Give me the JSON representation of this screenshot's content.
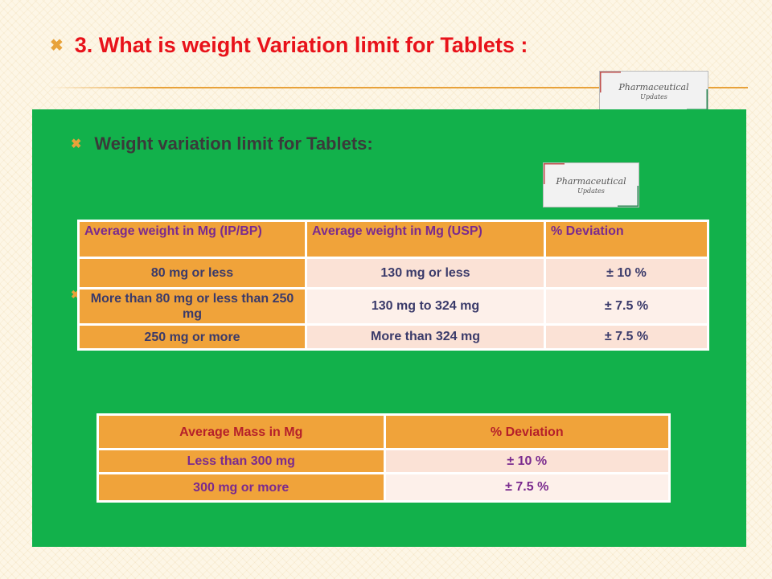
{
  "slide": {
    "title": "3. What is weight Variation limit for Tablets  :"
  },
  "logo": {
    "line1": "Pharmaceutical",
    "line2": "Updates"
  },
  "panel": {
    "heading": "Weight variation limit for Tablets:",
    "table1": {
      "headers": [
        "Average weight in Mg (IP/BP)",
        "Average weight in Mg (USP)",
        "% Deviation"
      ],
      "rows": [
        [
          "80 mg or less",
          "130 mg or less",
          "± 10 %"
        ],
        [
          "More than 80 mg or less than 250 mg",
          "130 mg to 324 mg",
          "± 7.5 %"
        ],
        [
          "250 mg or more",
          "More than 324 mg",
          "± 7.5 %"
        ]
      ]
    },
    "table2": {
      "headers": [
        "Average Mass in Mg",
        "% Deviation"
      ],
      "rows": [
        [
          "Less than 300 mg",
          "± 10 %"
        ],
        [
          "300 mg or more",
          "± 7.5 %"
        ]
      ]
    }
  },
  "colors": {
    "title_red": "#e8121a",
    "accent_orange": "#f0a33a",
    "panel_green": "#12b14b"
  }
}
